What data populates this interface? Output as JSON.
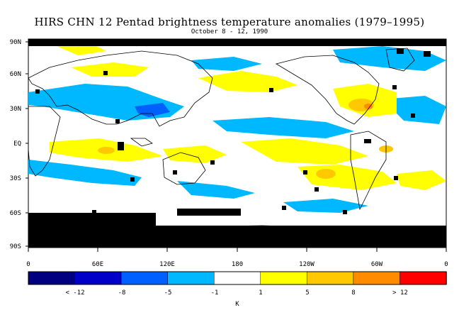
{
  "header": {
    "title": "HIRS CHN 12 Pentad brightness temperature anomalies (1979–1995)",
    "subtitle": "October 8 - 12, 1990"
  },
  "map": {
    "lat_labels": [
      "90N",
      "60N",
      "30N",
      "EQ",
      "30S",
      "60S",
      "90S"
    ],
    "lon_labels": [
      "0",
      "60E",
      "120E",
      "180",
      "120W",
      "60W",
      "0"
    ]
  },
  "colorbar": {
    "colors": [
      "#000080",
      "#0000c8",
      "#0060ff",
      "#00b8ff",
      "#ffffff",
      "#ffff00",
      "#ffc800",
      "#ff8c00",
      "#ff0000"
    ],
    "tick_labels": [
      "< -12",
      "-8",
      "-5",
      "-1",
      "1",
      "5",
      "8",
      "> 12"
    ],
    "unit": "K"
  }
}
